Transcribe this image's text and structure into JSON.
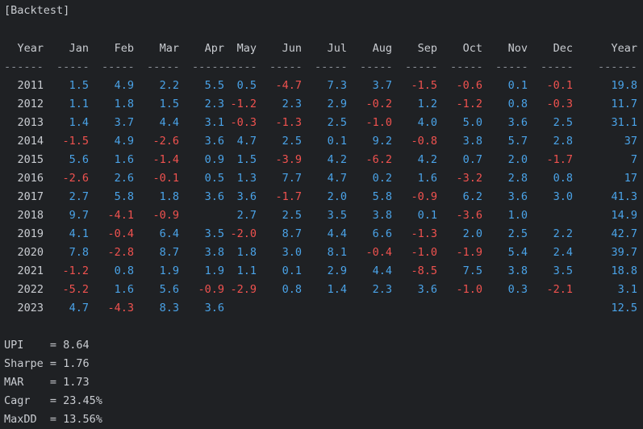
{
  "title": "[Backtest]",
  "headers": [
    "Year",
    "Jan",
    "Feb",
    "Mar",
    "Apr",
    "May",
    "Jun",
    "Jul",
    "Aug",
    "Sep",
    "Oct",
    "Nov",
    "Dec",
    "Year"
  ],
  "separators": [
    "------",
    "-----",
    "-----",
    "-----",
    "-----",
    "-----",
    "-----",
    "-----",
    "-----",
    "-----",
    "-----",
    "-----",
    "-----",
    "------"
  ],
  "rows": [
    {
      "year": "2011",
      "cells": [
        "1.5",
        "4.9",
        "2.2",
        "5.5",
        "0.5",
        "-4.7",
        "7.3",
        "3.7",
        "-1.5",
        "-0.6",
        "0.1",
        "-0.1",
        "19.8"
      ]
    },
    {
      "year": "2012",
      "cells": [
        "1.1",
        "1.8",
        "1.5",
        "2.3",
        "-1.2",
        "2.3",
        "2.9",
        "-0.2",
        "1.2",
        "-1.2",
        "0.8",
        "-0.3",
        "11.7"
      ]
    },
    {
      "year": "2013",
      "cells": [
        "1.4",
        "3.7",
        "4.4",
        "3.1",
        "-0.3",
        "-1.3",
        "2.5",
        "-1.0",
        "4.0",
        "5.0",
        "3.6",
        "2.5",
        "31.1"
      ]
    },
    {
      "year": "2014",
      "cells": [
        "-1.5",
        "4.9",
        "-2.6",
        "3.6",
        "4.7",
        "2.5",
        "0.1",
        "9.2",
        "-0.8",
        "3.8",
        "5.7",
        "2.8",
        "37"
      ]
    },
    {
      "year": "2015",
      "cells": [
        "5.6",
        "1.6",
        "-1.4",
        "0.9",
        "1.5",
        "-3.9",
        "4.2",
        "-6.2",
        "4.2",
        "0.7",
        "2.0",
        "-1.7",
        "7"
      ]
    },
    {
      "year": "2016",
      "cells": [
        "-2.6",
        "2.6",
        "-0.1",
        "0.5",
        "1.3",
        "7.7",
        "4.7",
        "0.2",
        "1.6",
        "-3.2",
        "2.8",
        "0.8",
        "17"
      ]
    },
    {
      "year": "2017",
      "cells": [
        "2.7",
        "5.8",
        "1.8",
        "3.6",
        "3.6",
        "-1.7",
        "2.0",
        "5.8",
        "-0.9",
        "6.2",
        "3.6",
        "3.0",
        "41.3"
      ]
    },
    {
      "year": "2018",
      "cells": [
        "9.7",
        "-4.1",
        "-0.9",
        "",
        "2.7",
        "2.5",
        "3.5",
        "3.8",
        "0.1",
        "-3.6",
        "1.0",
        "",
        "14.9"
      ]
    },
    {
      "year": "2019",
      "cells": [
        "4.1",
        "-0.4",
        "6.4",
        "3.5",
        "-2.0",
        "8.7",
        "4.4",
        "6.6",
        "-1.3",
        "2.0",
        "2.5",
        "2.2",
        "42.7"
      ]
    },
    {
      "year": "2020",
      "cells": [
        "7.8",
        "-2.8",
        "8.7",
        "3.8",
        "1.8",
        "3.0",
        "8.1",
        "-0.4",
        "-1.0",
        "-1.9",
        "5.4",
        "2.4",
        "39.7"
      ]
    },
    {
      "year": "2021",
      "cells": [
        "-1.2",
        "0.8",
        "1.9",
        "1.9",
        "1.1",
        "0.1",
        "2.9",
        "4.4",
        "-8.5",
        "7.5",
        "3.8",
        "3.5",
        "18.8"
      ]
    },
    {
      "year": "2022",
      "cells": [
        "-5.2",
        "1.6",
        "5.6",
        "-0.9",
        "-2.9",
        "0.8",
        "1.4",
        "2.3",
        "3.6",
        "-1.0",
        "0.3",
        "-2.1",
        "3.1"
      ]
    },
    {
      "year": "2023",
      "cells": [
        "4.7",
        "-4.3",
        "8.3",
        "3.6",
        "",
        "",
        "",
        "",
        "",
        "",
        "",
        "",
        "12.5"
      ]
    }
  ],
  "stats": [
    {
      "label": "UPI   ",
      "value": "8.64"
    },
    {
      "label": "Sharpe",
      "value": "1.76"
    },
    {
      "label": "MAR   ",
      "value": "1.73"
    },
    {
      "label": "Cagr  ",
      "value": "23.45%"
    },
    {
      "label": "MaxDD ",
      "value": "13.56%"
    }
  ],
  "colors": {
    "background": "#1f2124",
    "text": "#c9ccd1",
    "positive": "#4aa3e8",
    "negative": "#f0524f"
  }
}
